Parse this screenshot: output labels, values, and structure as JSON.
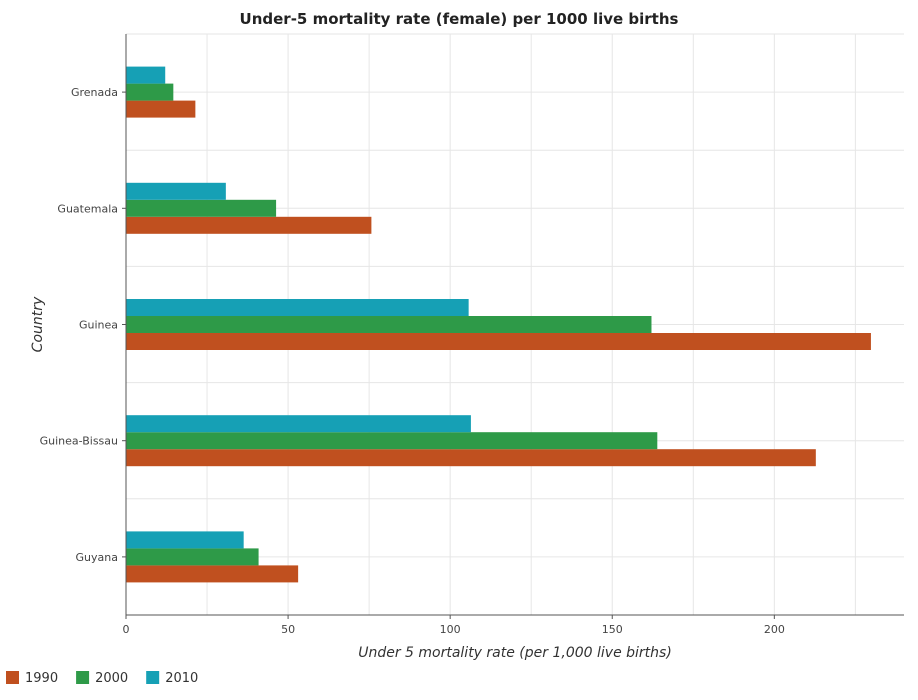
{
  "chart_data": {
    "type": "bar",
    "orientation": "horizontal",
    "title": "Under-5 mortality rate (female) per 1000 live births",
    "xlabel": "Under 5 mortality rate (per 1,000 live births)",
    "ylabel": "Country",
    "categories": [
      "Grenada",
      "Guatemala",
      "Guinea",
      "Guinea-Bissau",
      "Guyana"
    ],
    "series": [
      {
        "name": "1990",
        "color": "#c0501f",
        "values": [
          21.4,
          75.7,
          229.8,
          212.8,
          53.1
        ]
      },
      {
        "name": "2000",
        "color": "#2e9a48",
        "values": [
          14.6,
          46.3,
          162.1,
          163.9,
          40.9
        ]
      },
      {
        "name": "2010",
        "color": "#16a0b5",
        "values": [
          12.1,
          30.8,
          105.7,
          106.4,
          36.3
        ]
      }
    ],
    "xlim": [
      0,
      240
    ],
    "xticks": [
      0,
      50,
      100,
      150,
      200
    ],
    "grid": true,
    "legend_position": "bottom-left"
  }
}
